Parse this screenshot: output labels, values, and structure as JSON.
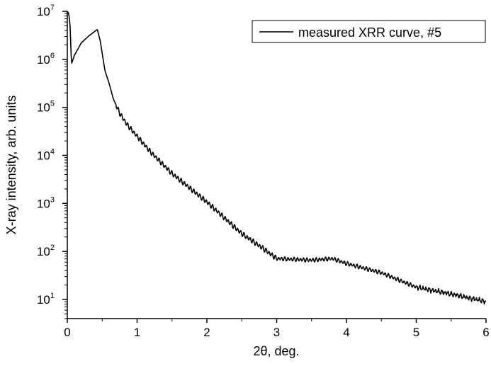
{
  "chart_data": {
    "type": "line",
    "title": "",
    "xlabel": "2θ, deg.",
    "ylabel": "X-ray intensity, arb. units",
    "xlim": [
      0,
      6
    ],
    "ylim": [
      4,
      10000000
    ],
    "yscale": "log",
    "grid": false,
    "legend_position": "top-right",
    "x_ticks": [
      "0",
      "1",
      "2",
      "3",
      "4",
      "5",
      "6"
    ],
    "x_tick_values": [
      0,
      1,
      2,
      3,
      4,
      5,
      6
    ],
    "y_ticks": [
      {
        "base": "10",
        "exp": "1",
        "value": 10
      },
      {
        "base": "10",
        "exp": "2",
        "value": 100
      },
      {
        "base": "10",
        "exp": "3",
        "value": 1000
      },
      {
        "base": "10",
        "exp": "4",
        "value": 10000
      },
      {
        "base": "10",
        "exp": "5",
        "value": 100000
      },
      {
        "base": "10",
        "exp": "6",
        "value": 1000000
      },
      {
        "base": "10",
        "exp": "7",
        "value": 10000000
      }
    ],
    "series": [
      {
        "name": "measured XRR curve, #5",
        "color": "#000000",
        "x": [
          0,
          0.02,
          0.04,
          0.06,
          0.1,
          0.2,
          0.3,
          0.43,
          0.47,
          0.54,
          0.59,
          0.66,
          0.75,
          0.85,
          1.0,
          1.2,
          1.5,
          2.0,
          2.5,
          2.8,
          3.0,
          3.5,
          3.8,
          4.0,
          4.5,
          5.0,
          5.5,
          6.0
        ],
        "y": [
          10000000,
          9000000,
          5000000,
          800000,
          1200000,
          2200000,
          3000000,
          4200000,
          2500000,
          575000,
          350000,
          150000,
          76000,
          45000,
          25000,
          11500,
          4200,
          1070,
          235,
          117,
          71,
          66,
          71,
          56,
          36,
          18,
          13,
          9
        ]
      }
    ]
  }
}
